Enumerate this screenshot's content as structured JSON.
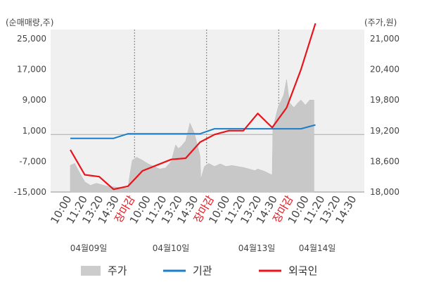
{
  "chart_data": {
    "type": "line",
    "left_axis": {
      "label": "(순매매량,주)",
      "ticks": [
        "25,000",
        "17,000",
        "9,000",
        "1,000",
        "-7,000",
        "-15,000"
      ],
      "range": [
        -15000,
        25000
      ]
    },
    "right_axis": {
      "label": "(주가,원)",
      "ticks": [
        "21,000",
        "20,400",
        "19,800",
        "19,200",
        "18,600",
        "18,000"
      ],
      "range": [
        18000,
        21000
      ]
    },
    "time_labels": [
      {
        "text": "10:00",
        "color": "#444444"
      },
      {
        "text": "11:20",
        "color": "#444444"
      },
      {
        "text": "13:20",
        "color": "#444444"
      },
      {
        "text": "14:30",
        "color": "#444444"
      },
      {
        "text": "장마감",
        "color": "#e8141c"
      },
      {
        "text": "10:00",
        "color": "#444444"
      },
      {
        "text": "11:20",
        "color": "#444444"
      },
      {
        "text": "13:20",
        "color": "#444444"
      },
      {
        "text": "14:30",
        "color": "#444444"
      },
      {
        "text": "장마감",
        "color": "#e8141c"
      },
      {
        "text": "10:00",
        "color": "#444444"
      },
      {
        "text": "11:20",
        "color": "#444444"
      },
      {
        "text": "13:20",
        "color": "#444444"
      },
      {
        "text": "14:30",
        "color": "#444444"
      },
      {
        "text": "장마감",
        "color": "#e8141c"
      },
      {
        "text": "10:00",
        "color": "#444444"
      },
      {
        "text": "11:20",
        "color": "#444444"
      },
      {
        "text": "13:20",
        "color": "#444444"
      },
      {
        "text": "14:30",
        "color": "#444444"
      }
    ],
    "day_labels": [
      "04월09일",
      "04월10일",
      "04월13일",
      "04월14일"
    ],
    "legend": [
      {
        "name": "주가",
        "color": "#cccccc",
        "kind": "area"
      },
      {
        "name": "기관",
        "color": "#1a7fc8",
        "kind": "line"
      },
      {
        "name": "외국인",
        "color": "#e8141c",
        "kind": "line"
      }
    ],
    "series": [
      {
        "name": "기관",
        "axis": "left",
        "x": [
          0,
          1,
          2,
          3,
          4,
          5,
          6,
          7,
          8,
          9,
          10,
          11,
          12,
          13,
          14,
          15,
          16,
          17
        ],
        "values": [
          -1000,
          -1000,
          -1000,
          -1000,
          200,
          200,
          200,
          200,
          200,
          200,
          1500,
          1500,
          1500,
          1500,
          1500,
          1500,
          1500,
          2500
        ]
      },
      {
        "name": "외국인",
        "axis": "left",
        "x": [
          0,
          1,
          2,
          3,
          4,
          5,
          6,
          7,
          8,
          9,
          10,
          11,
          12,
          13,
          14,
          15,
          16,
          17
        ],
        "values": [
          -4000,
          -10500,
          -11000,
          -14300,
          -13500,
          -9500,
          -8000,
          -6500,
          -6200,
          -2000,
          0,
          1000,
          1000,
          5500,
          1800,
          7000,
          17000,
          29000
        ]
      },
      {
        "name": "주가",
        "axis": "right",
        "kind": "area",
        "x": [
          0,
          0.3,
          0.6,
          1,
          1.4,
          1.8,
          2.2,
          2.6,
          3,
          3.4,
          3.8,
          4,
          4.1,
          4.3,
          4.6,
          5,
          5.4,
          5.8,
          6.2,
          6.6,
          7,
          7.3,
          7.5,
          7.7,
          8,
          8.3,
          8.6,
          9,
          9.05,
          9.3,
          9.6,
          10,
          10.4,
          10.8,
          11.2,
          11.6,
          12,
          12.4,
          12.8,
          13,
          13.5,
          14,
          14.05,
          14.4,
          14.8,
          15,
          15.2,
          15.5,
          15.8,
          16,
          16.3,
          16.6,
          16.9
        ],
        "values": [
          18520,
          18560,
          18400,
          18200,
          18130,
          18170,
          18140,
          18110,
          18100,
          18090,
          18070,
          18080,
          18290,
          18620,
          18680,
          18620,
          18550,
          18500,
          18450,
          18470,
          18600,
          18920,
          18850,
          18900,
          19000,
          19350,
          19150,
          18700,
          18250,
          18500,
          18560,
          18500,
          18550,
          18500,
          18520,
          18500,
          18480,
          18450,
          18420,
          18450,
          18400,
          18330,
          19250,
          19650,
          19900,
          20200,
          19750,
          19650,
          19750,
          19800,
          19700,
          19800,
          19800
        ]
      }
    ],
    "grid": "vertical-dashed-at-day-boundaries"
  }
}
